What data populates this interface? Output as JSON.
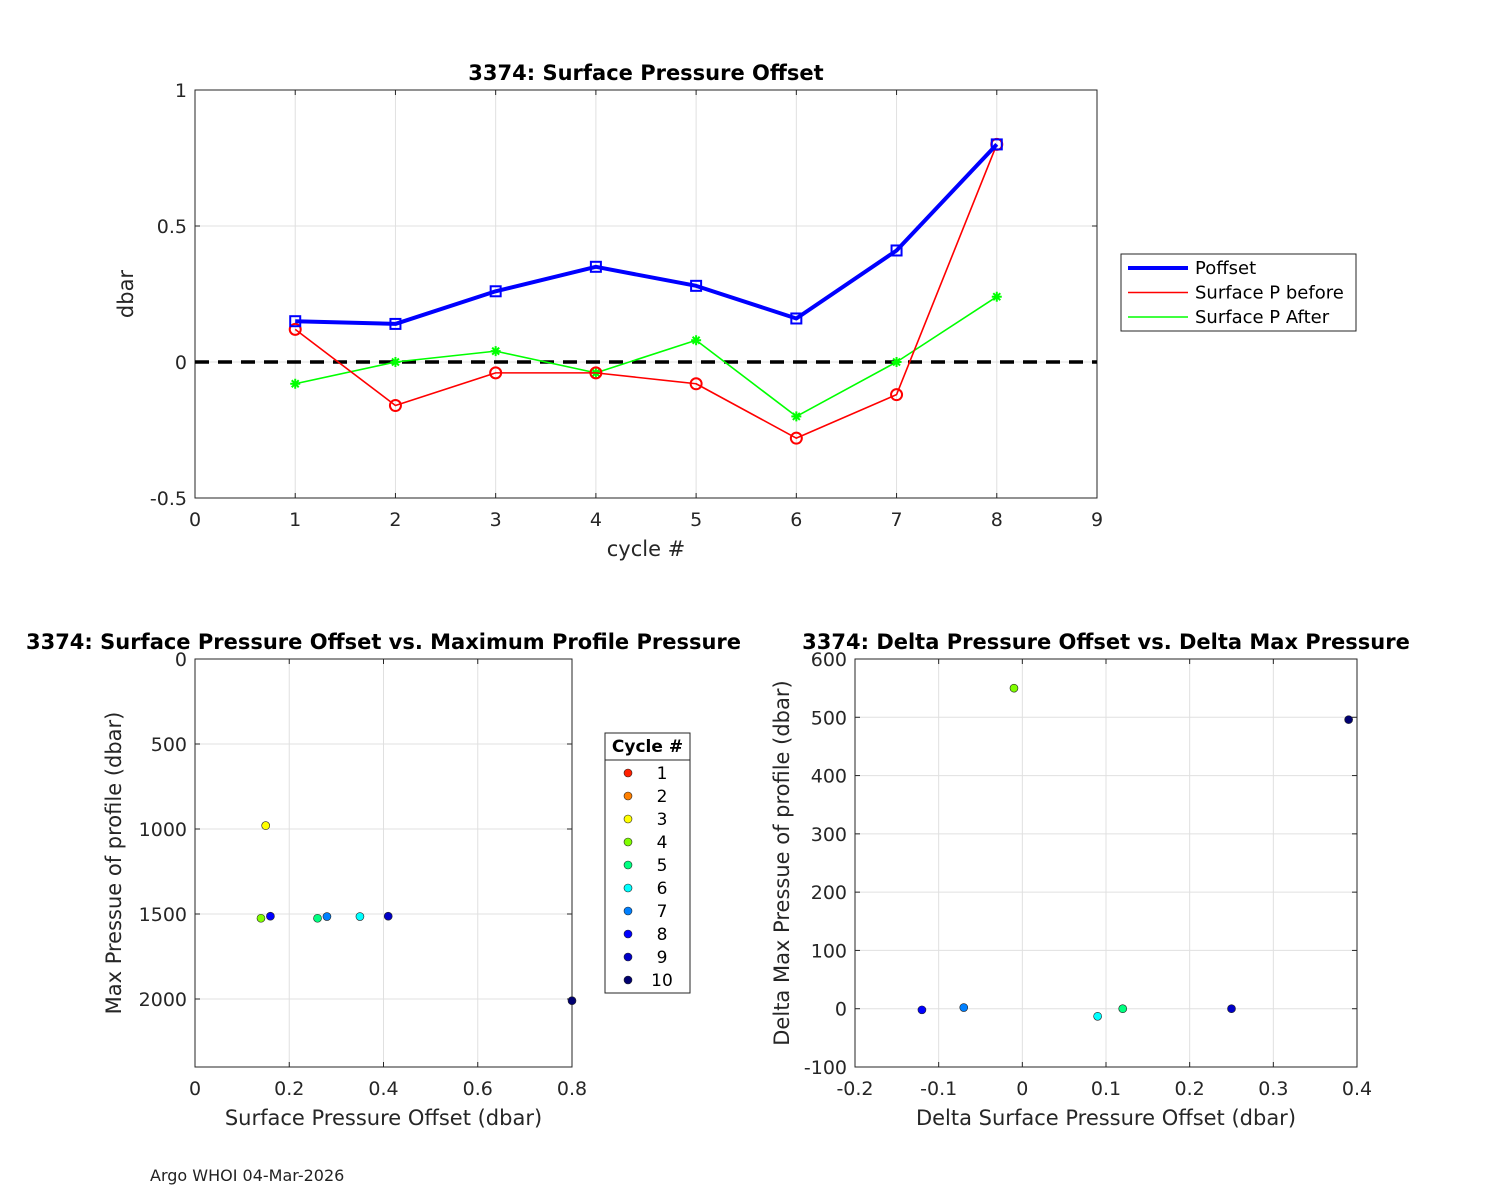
{
  "footer": "Argo WHOI 04-Mar-2026",
  "colors": {
    "poffset": "#0000ff",
    "before": "#ff0000",
    "after": "#00ff00",
    "zero_line": "#000000"
  },
  "chart_data": [
    {
      "type": "line",
      "title": "3374: Surface Pressure Offset",
      "xlabel": "cycle #",
      "ylabel": "dbar",
      "xlim": [
        0,
        9
      ],
      "ylim": [
        -0.5,
        1
      ],
      "xticks": [
        "0",
        "1",
        "2",
        "3",
        "4",
        "5",
        "6",
        "7",
        "8",
        "9"
      ],
      "yticks": [
        "-0.5",
        "0",
        "0.5",
        "1"
      ],
      "grid": true,
      "legend_position": "outside-right",
      "x": [
        1,
        2,
        3,
        4,
        5,
        6,
        7,
        8
      ],
      "series": [
        {
          "name": "Poffset",
          "color": "#0000ff",
          "marker": "square",
          "values": [
            0.15,
            0.14,
            0.26,
            0.35,
            0.28,
            0.16,
            0.41,
            0.8
          ]
        },
        {
          "name": "Surface P before",
          "color": "#ff0000",
          "marker": "circle",
          "values": [
            0.12,
            -0.16,
            -0.04,
            -0.04,
            -0.08,
            -0.28,
            -0.12,
            0.8
          ]
        },
        {
          "name": "Surface P After",
          "color": "#00ff00",
          "marker": "asterisk",
          "values": [
            -0.08,
            0.0,
            0.04,
            -0.04,
            0.08,
            -0.2,
            0.0,
            0.24
          ]
        }
      ],
      "reference_line": {
        "y": 0,
        "style": "dashed",
        "color": "#000000"
      }
    },
    {
      "type": "scatter",
      "title": "3374: Surface Pressure Offset vs. Maximum Profile Pressure",
      "xlabel": "Surface Pressure Offset (dbar)",
      "ylabel": "Max Pressue of profile (dbar)",
      "xlim": [
        0,
        0.8
      ],
      "ylim": [
        0,
        2400
      ],
      "y_reversed": true,
      "xticks": [
        "0",
        "0.2",
        "0.4",
        "0.6",
        "0.8"
      ],
      "yticks": [
        "0",
        "500",
        "1000",
        "1500",
        "2000"
      ],
      "grid": true,
      "legend_title": "Cycle #",
      "legend_position": "outside-right",
      "points": [
        {
          "cycle": "3",
          "x": 0.15,
          "y": 980,
          "color": "#ffff00"
        },
        {
          "cycle": "4",
          "x": 0.14,
          "y": 1525,
          "color": "#80ff00"
        },
        {
          "cycle": "5",
          "x": 0.26,
          "y": 1525,
          "color": "#00ff80"
        },
        {
          "cycle": "6",
          "x": 0.35,
          "y": 1515,
          "color": "#00ffff"
        },
        {
          "cycle": "7",
          "x": 0.28,
          "y": 1515,
          "color": "#0080ff"
        },
        {
          "cycle": "8",
          "x": 0.16,
          "y": 1513,
          "color": "#0000ff"
        },
        {
          "cycle": "9",
          "x": 0.41,
          "y": 1513,
          "color": "#0000c8"
        },
        {
          "cycle": "10",
          "x": 0.8,
          "y": 2010,
          "color": "#000070"
        }
      ],
      "legend": [
        {
          "label": "1",
          "color": "#ff2000"
        },
        {
          "label": "2",
          "color": "#ff8000"
        },
        {
          "label": "3",
          "color": "#ffff00"
        },
        {
          "label": "4",
          "color": "#80ff00"
        },
        {
          "label": "5",
          "color": "#00ff80"
        },
        {
          "label": "6",
          "color": "#00ffff"
        },
        {
          "label": "7",
          "color": "#0080ff"
        },
        {
          "label": "8",
          "color": "#0000ff"
        },
        {
          "label": "9",
          "color": "#0000c8"
        },
        {
          "label": "10",
          "color": "#000070"
        }
      ]
    },
    {
      "type": "scatter",
      "title": "3374: Delta Pressure Offset vs. Delta Max Pressure",
      "xlabel": "Delta Surface Pressure Offset (dbar)",
      "ylabel": "Delta Max Pressue of profile (dbar)",
      "xlim": [
        -0.2,
        0.4
      ],
      "ylim": [
        -100,
        600
      ],
      "xticks": [
        "-0.2",
        "-0.1",
        "0",
        "0.1",
        "0.2",
        "0.3",
        "0.4"
      ],
      "yticks": [
        "-100",
        "0",
        "100",
        "200",
        "300",
        "400",
        "500",
        "600"
      ],
      "grid": true,
      "points": [
        {
          "x": -0.01,
          "y": 550,
          "color": "#80ff00"
        },
        {
          "x": 0.39,
          "y": 496,
          "color": "#000070"
        },
        {
          "x": -0.12,
          "y": -2,
          "color": "#0000ff"
        },
        {
          "x": -0.07,
          "y": 2,
          "color": "#0080ff"
        },
        {
          "x": 0.09,
          "y": -13,
          "color": "#00ffff"
        },
        {
          "x": 0.12,
          "y": 0,
          "color": "#00ff80"
        },
        {
          "x": 0.25,
          "y": 0,
          "color": "#0000c8"
        }
      ]
    }
  ]
}
